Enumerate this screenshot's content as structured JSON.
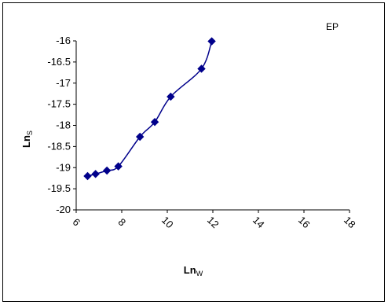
{
  "chart_data": {
    "type": "line",
    "title": "",
    "xlabel": {
      "main": "Ln",
      "sub": "W"
    },
    "ylabel": {
      "main": "Ln",
      "sub": "S"
    },
    "xlim": [
      6,
      18
    ],
    "ylim": [
      -20,
      -16
    ],
    "x_ticks": [
      "6",
      "8",
      "10",
      "12",
      "14",
      "16",
      "18"
    ],
    "y_ticks": [
      "-16",
      "-16.5",
      "-17",
      "-17.5",
      "-18",
      "-18.5",
      "-19",
      "-19.5",
      "-20"
    ],
    "grid": false,
    "legend_position": "top-right",
    "series": [
      {
        "name": "EP",
        "color": "#00008B",
        "marker": "diamond",
        "points": [
          {
            "x": 6.5,
            "y": -19.2
          },
          {
            "x": 6.85,
            "y": -19.15
          },
          {
            "x": 7.35,
            "y": -19.07
          },
          {
            "x": 7.85,
            "y": -18.97
          },
          {
            "x": 8.8,
            "y": -18.27
          },
          {
            "x": 9.45,
            "y": -17.92
          },
          {
            "x": 10.15,
            "y": -17.32
          },
          {
            "x": 11.5,
            "y": -16.66
          },
          {
            "x": 11.95,
            "y": -16.01
          }
        ]
      }
    ]
  }
}
